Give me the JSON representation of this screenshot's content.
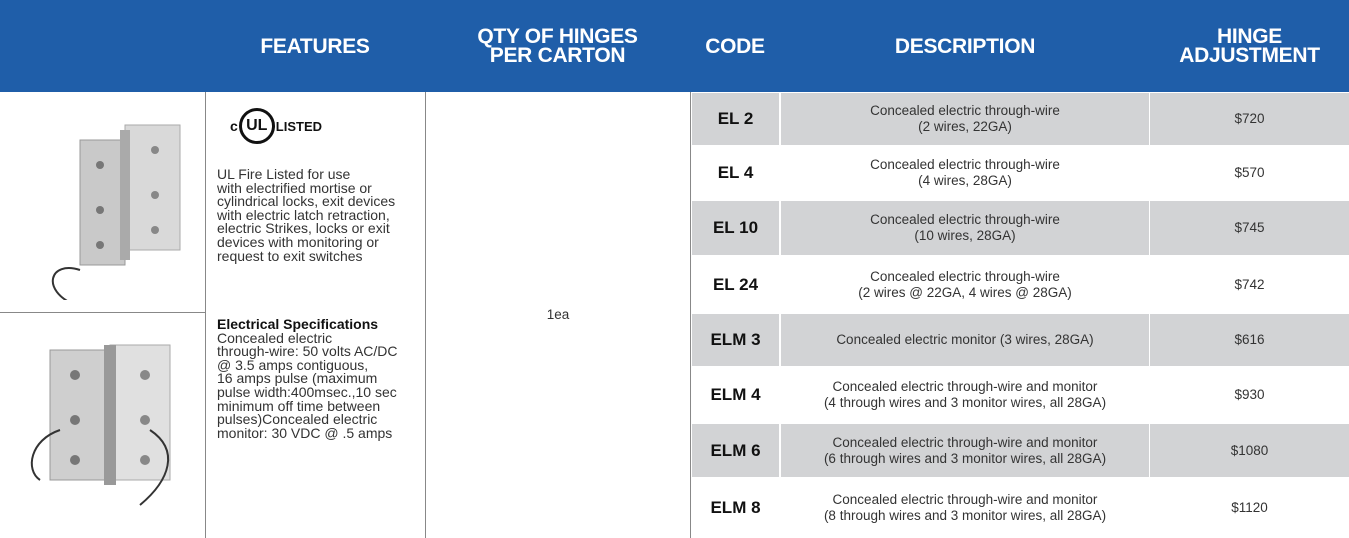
{
  "header": {
    "columns": [
      [
        "FEATURES"
      ],
      [
        "QTY OF HINGES",
        "PER CARTON"
      ],
      [
        "CODE"
      ],
      [
        "DESCRIPTION"
      ],
      [
        "HINGE",
        "ADJUSTMENT"
      ]
    ]
  },
  "features": {
    "ul_logo": {
      "c": "c",
      "mark": "UL",
      "listed": "LISTED"
    },
    "text_lines": [
      "UL Fire Listed for use",
      "with electrified mortise or",
      "cylindrical locks, exit devices",
      "with electric latch retraction,",
      "electric Strikes, locks or exit",
      "devices with monitoring or",
      "request to exit switches"
    ],
    "spec_heading": "Electrical Specifications",
    "spec_lines": [
      "Concealed electric",
      "through-wire: 50 volts AC/DC",
      "@ 3.5 amps contiguous,",
      "16 amps pulse (maximum",
      "pulse width:400msec.,10 sec",
      "minimum off time between",
      "pulses)Concealed electric",
      "monitor: 30 VDC @ .5 amps"
    ]
  },
  "qty": "1ea",
  "rows": [
    {
      "code": "EL 2",
      "description": [
        "Concealed electric through-wire",
        "(2 wires, 22GA)"
      ],
      "price": "$720"
    },
    {
      "code": "EL 4",
      "description": [
        "Concealed electric through-wire",
        "(4 wires, 28GA)"
      ],
      "price": "$570"
    },
    {
      "code": "EL 10",
      "description": [
        "Concealed electric through-wire",
        "(10 wires, 28GA)"
      ],
      "price": "$745"
    },
    {
      "code": "EL 24",
      "description": [
        "Concealed electric through-wire",
        "(2 wires @ 22GA, 4 wires @ 28GA)"
      ],
      "price": "$742"
    },
    {
      "code": "ELM 3",
      "description": [
        "Concealed electric monitor (3 wires, 28GA)"
      ],
      "price": "$616"
    },
    {
      "code": "ELM 4",
      "description": [
        "Concealed electric through-wire and monitor",
        "(4 through wires and 3 monitor wires, all 28GA)"
      ],
      "price": "$930"
    },
    {
      "code": "ELM 6",
      "description": [
        "Concealed electric through-wire and monitor",
        "(6 through wires and 3 monitor wires, all 28GA)"
      ],
      "price": "$1080"
    },
    {
      "code": "ELM 8",
      "description": [
        "Concealed electric through-wire and monitor",
        "(8 through wires and 3 monitor wires, all 28GA)"
      ],
      "price": "$1120"
    }
  ]
}
